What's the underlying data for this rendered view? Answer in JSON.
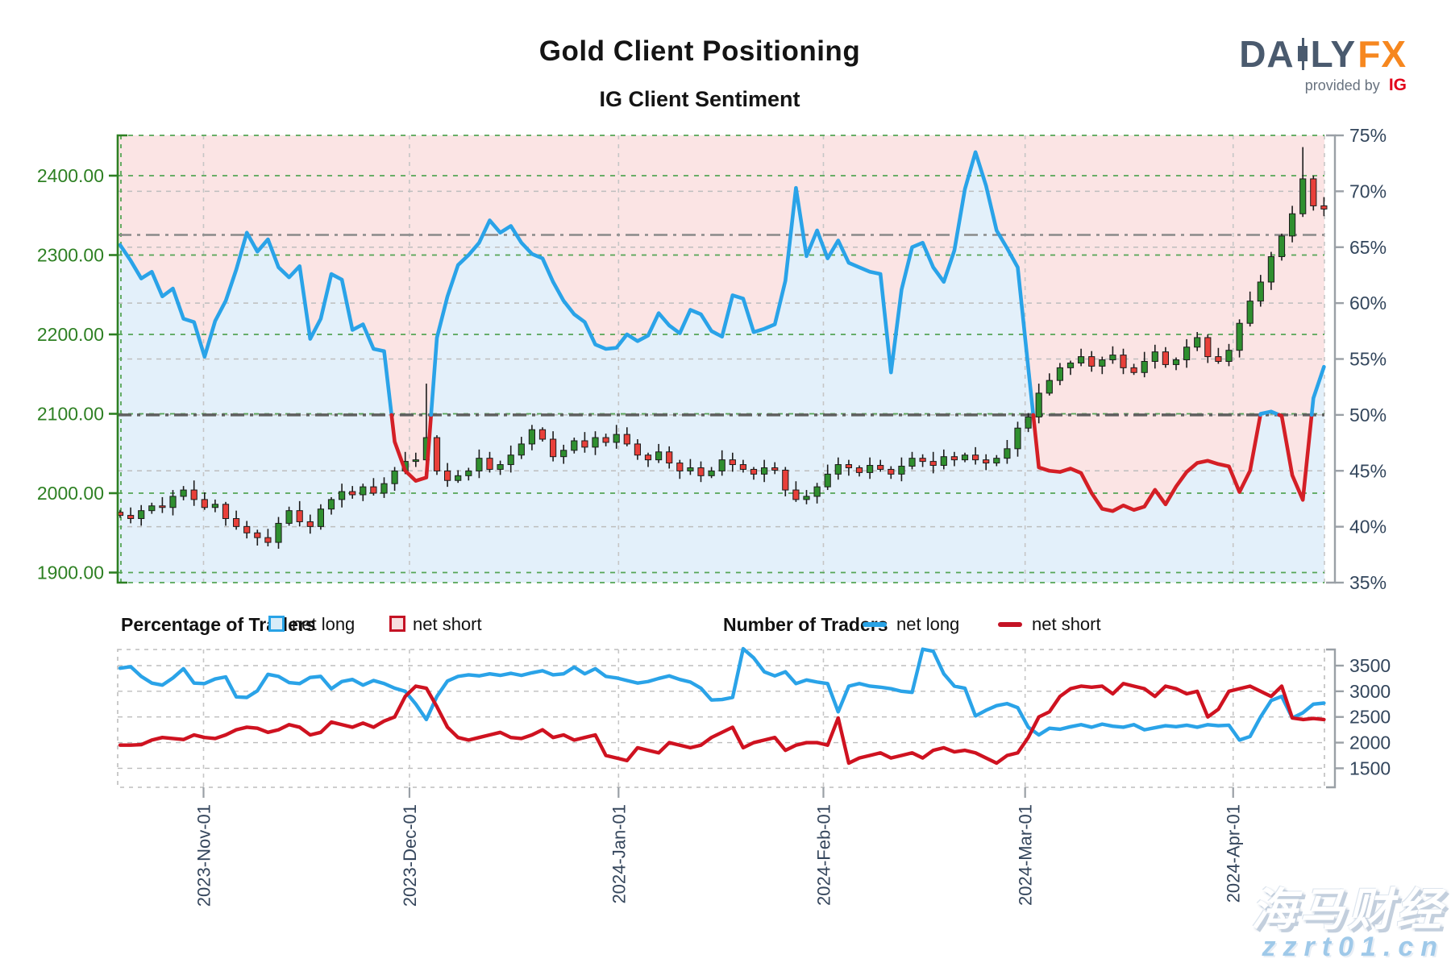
{
  "header": {
    "title": "Gold Client Positioning",
    "subtitle": "IG Client Sentiment"
  },
  "logo": {
    "text_da": "DA",
    "text_ly": "LY",
    "text_fx": "FX",
    "provided_by": "provided by",
    "ig": "IG"
  },
  "legend": {
    "percentage_title": "Percentage of Traders",
    "number_title": "Number of Traders",
    "net_long": "net long",
    "net_short": "net short",
    "colors": {
      "long_border": "#29a3e6",
      "long_fill": "#d8ecf8",
      "short_border": "#c41325",
      "short_fill": "#f7dfdf"
    }
  },
  "watermark": {
    "line1": "海马财经",
    "line2": "zzrt01.cn"
  },
  "chart_data": [
    {
      "name": "main-sentiment-chart",
      "type": "candlestick+line",
      "price_axis": {
        "side": "left",
        "ticks": [
          1900,
          2000,
          2100,
          2200,
          2300,
          2400
        ],
        "color": "#2e8023"
      },
      "percent_axis": {
        "side": "right",
        "ticks": [
          35,
          40,
          45,
          50,
          55,
          60,
          65,
          70,
          75
        ],
        "range": [
          35,
          75
        ],
        "color": "#33465c"
      },
      "reference_lines": [
        {
          "percent": 66.1,
          "style": "dash-dot",
          "color": "#8a8a8a",
          "width": 2.5
        },
        {
          "percent": 50.0,
          "style": "dash-dot",
          "color": "#5f5f5f",
          "width": 3.5
        }
      ],
      "months": {
        "labels": [
          "2023-Nov-01",
          "2023-Dec-01",
          "2024-Jan-01",
          "2024-Feb-01",
          "2024-Mar-01",
          "2024-Apr-01"
        ],
        "positions": [
          7.9,
          27.4,
          47.2,
          66.6,
          85.7,
          105.4
        ]
      },
      "colors": {
        "fill_above": "#fbe4e4",
        "fill_below": "#e3f0fa",
        "line_above50": "#2aa3e8",
        "line_below50": "#d41f26",
        "candle_up": "#2f8f2f",
        "candle_down": "#e8403a",
        "candle_stroke": "#1c1c1c",
        "grid_green": "#55a555",
        "grid_gray": "#bdbdbd"
      },
      "sentiment_pct": [
        65.2,
        63.8,
        62.2,
        62.8,
        60.6,
        61.3,
        58.6,
        58.3,
        55.2,
        58.4,
        60.2,
        63.0,
        66.3,
        64.6,
        65.7,
        63.2,
        62.3,
        63.3,
        56.8,
        58.6,
        62.6,
        62.1,
        57.6,
        58.1,
        55.9,
        55.7,
        47.6,
        45.0,
        44.1,
        44.4,
        56.9,
        60.6,
        63.4,
        64.3,
        65.4,
        67.4,
        66.3,
        66.9,
        65.4,
        64.4,
        64.0,
        61.9,
        60.2,
        59.0,
        58.3,
        56.3,
        55.9,
        56.0,
        57.2,
        56.6,
        57.1,
        59.1,
        58.0,
        57.3,
        59.4,
        59.0,
        57.5,
        57.0,
        60.7,
        60.4,
        57.4,
        57.7,
        58.1,
        62.0,
        70.3,
        64.2,
        66.5,
        64.0,
        65.6,
        63.6,
        63.2,
        62.8,
        62.6,
        53.8,
        61.2,
        65.0,
        65.4,
        63.2,
        61.9,
        64.7,
        70.2,
        73.5,
        70.5,
        66.5,
        64.9,
        63.2,
        54.2,
        45.3,
        45.0,
        44.9,
        45.2,
        44.8,
        43.0,
        41.6,
        41.4,
        41.9,
        41.5,
        41.8,
        43.3,
        42.0,
        43.6,
        44.9,
        45.7,
        45.9,
        45.6,
        45.4,
        43.1,
        45.0,
        50.1,
        50.3,
        49.9,
        44.6,
        42.4,
        51.5,
        54.3
      ],
      "candles": {
        "close": [
          1972,
          1968,
          1978,
          1984,
          1982,
          1996,
          2004,
          1992,
          1982,
          1986,
          1968,
          1958,
          1950,
          1944,
          1938,
          1962,
          1978,
          1964,
          1958,
          1980,
          1992,
          2002,
          1998,
          2008,
          2000,
          2012,
          2028,
          2040,
          2042,
          2070,
          2028,
          2016,
          2022,
          2028,
          2044,
          2030,
          2036,
          2048,
          2062,
          2080,
          2068,
          2046,
          2054,
          2066,
          2058,
          2070,
          2064,
          2074,
          2062,
          2048,
          2042,
          2052,
          2038,
          2028,
          2032,
          2022,
          2028,
          2042,
          2036,
          2030,
          2024,
          2032,
          2029,
          2004,
          1992,
          1996,
          2008,
          2024,
          2036,
          2032,
          2026,
          2035,
          2030,
          2024,
          2034,
          2044,
          2040,
          2035,
          2046,
          2042,
          2048,
          2042,
          2038,
          2044,
          2056,
          2082,
          2096,
          2126,
          2142,
          2158,
          2164,
          2172,
          2160,
          2168,
          2174,
          2158,
          2152,
          2166,
          2178,
          2162,
          2168,
          2184,
          2196,
          2172,
          2166,
          2180,
          2214,
          2242,
          2266,
          2298,
          2324,
          2352,
          2396,
          2362,
          2358
        ],
        "first_open": 1976,
        "wick_overrides": {
          "29": [
            2138,
            2026
          ],
          "112": [
            2436,
            2348
          ]
        }
      }
    },
    {
      "name": "number-of-traders-chart",
      "type": "line",
      "y_axis": {
        "side": "right",
        "ticks": [
          1500,
          2000,
          2500,
          3000,
          3500
        ],
        "color": "#33465c"
      },
      "series": [
        {
          "name": "net long",
          "color": "#2aa3e8",
          "values": [
            3450,
            3480,
            3290,
            3160,
            3120,
            3260,
            3440,
            3160,
            3150,
            3240,
            3280,
            2890,
            2880,
            3010,
            3330,
            3290,
            3170,
            3150,
            3270,
            3290,
            3050,
            3190,
            3230,
            3120,
            3210,
            3150,
            3060,
            3000,
            2750,
            2450,
            2900,
            3200,
            3290,
            3320,
            3300,
            3340,
            3310,
            3350,
            3310,
            3360,
            3400,
            3320,
            3340,
            3470,
            3340,
            3440,
            3290,
            3260,
            3210,
            3160,
            3190,
            3250,
            3300,
            3230,
            3180,
            3060,
            2830,
            2840,
            2880,
            3830,
            3650,
            3380,
            3300,
            3380,
            3150,
            3220,
            3180,
            3150,
            2600,
            3100,
            3150,
            3100,
            3080,
            3050,
            3000,
            2980,
            3820,
            3780,
            3340,
            3100,
            3060,
            2520,
            2630,
            2720,
            2760,
            2680,
            2300,
            2150,
            2280,
            2260,
            2310,
            2350,
            2300,
            2360,
            2320,
            2300,
            2350,
            2250,
            2290,
            2330,
            2310,
            2340,
            2300,
            2350,
            2330,
            2340,
            2050,
            2120,
            2500,
            2820,
            2900,
            2480,
            2580,
            2750,
            2770
          ]
        },
        {
          "name": "net short",
          "color": "#cf1220",
          "values": [
            1950,
            1950,
            1960,
            2050,
            2100,
            2080,
            2060,
            2150,
            2100,
            2080,
            2150,
            2250,
            2300,
            2280,
            2200,
            2250,
            2350,
            2300,
            2150,
            2200,
            2400,
            2350,
            2300,
            2380,
            2300,
            2420,
            2500,
            2900,
            3100,
            3060,
            2700,
            2300,
            2100,
            2050,
            2100,
            2150,
            2200,
            2100,
            2080,
            2150,
            2250,
            2100,
            2150,
            2050,
            2100,
            2150,
            1750,
            1700,
            1650,
            1900,
            1850,
            1800,
            2000,
            1950,
            1900,
            1950,
            2100,
            2200,
            2300,
            1900,
            2000,
            2050,
            2100,
            1850,
            1950,
            2000,
            2000,
            1950,
            2480,
            1600,
            1700,
            1750,
            1800,
            1700,
            1750,
            1800,
            1700,
            1850,
            1900,
            1820,
            1850,
            1800,
            1700,
            1600,
            1750,
            1800,
            2100,
            2500,
            2600,
            2900,
            3050,
            3100,
            3080,
            3100,
            2950,
            3150,
            3100,
            3050,
            2900,
            3100,
            3050,
            2950,
            3000,
            2500,
            2650,
            3000,
            3050,
            3100,
            3000,
            2900,
            3100,
            2480,
            2450,
            2470,
            2450
          ]
        }
      ]
    }
  ]
}
